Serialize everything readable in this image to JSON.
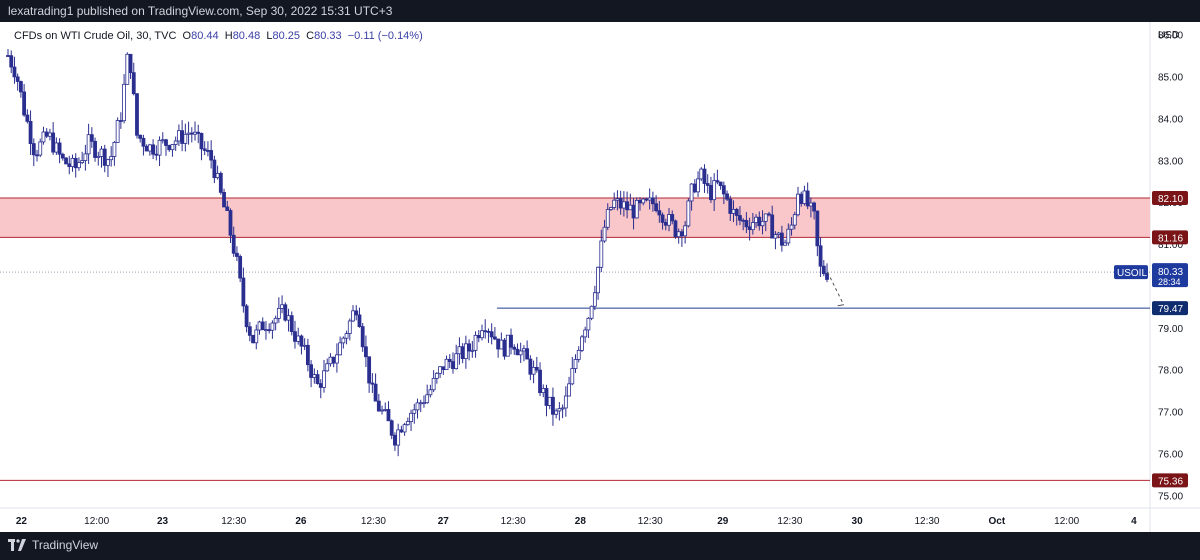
{
  "header": {
    "published_text": "lexatrading1 published on TradingView.com, Sep 30, 2022 15:31 UTC+3"
  },
  "legend": {
    "instrument": "CFDs on WTI Crude Oil, 30, TVC",
    "o_label": "O",
    "o_value": "80.44",
    "h_label": "H",
    "h_value": "80.48",
    "l_label": "L",
    "l_value": "80.25",
    "c_label": "C",
    "c_value": "80.33",
    "change": "−0.11 (−0.14%)"
  },
  "footer": {
    "brand": "TradingView"
  },
  "colors": {
    "candle": "#2a2e8f",
    "zone_fill": "#f9c6c9",
    "zone_line": "#b22833",
    "support_line": "#1f3f8f",
    "label_red": "#7a1417",
    "label_blue": "#0f2d6e",
    "symbol_badge": "#1e3a9e"
  },
  "chart_data": {
    "type": "candlestick",
    "currency_label": "USD",
    "ylim": [
      74.7,
      86.3
    ],
    "y_ticks": [
      "75.00",
      "76.00",
      "77.00",
      "78.00",
      "79.00",
      "81.00",
      "82.00",
      "83.00",
      "84.00",
      "85.00",
      "86.00"
    ],
    "x_ticks": [
      "22",
      "12:00",
      "23",
      "12:30",
      "26",
      "12:30",
      "27",
      "12:30",
      "28",
      "12:30",
      "29",
      "12:30",
      "30",
      "12:30",
      "Oct",
      "12:00",
      "4"
    ],
    "x_tick_bold": [
      "22",
      "23",
      "26",
      "27",
      "28",
      "29",
      "30",
      "Oct",
      "4"
    ],
    "x_tick_positions": [
      0.5,
      3.3,
      5.75,
      8.4,
      10.9,
      13.6,
      16.2,
      18.8,
      21.3,
      23.9,
      26.6,
      29.1,
      31.6,
      34.2,
      36.8,
      39.4,
      41.9
    ],
    "price_path": [
      [
        0,
        85.5
      ],
      [
        0.3,
        85.1
      ],
      [
        0.6,
        84.2
      ],
      [
        1.0,
        83.2
      ],
      [
        1.5,
        83.6
      ],
      [
        2.0,
        83.0
      ],
      [
        2.5,
        82.8
      ],
      [
        3.0,
        83.4
      ],
      [
        3.4,
        83.2
      ],
      [
        3.8,
        83.0
      ],
      [
        4.2,
        84.1
      ],
      [
        4.5,
        85.7
      ],
      [
        4.8,
        83.6
      ],
      [
        5.3,
        83.3
      ],
      [
        5.8,
        83.4
      ],
      [
        6.3,
        83.5
      ],
      [
        6.8,
        83.7
      ],
      [
        7.2,
        83.3
      ],
      [
        7.6,
        83.0
      ],
      [
        7.9,
        82.2
      ],
      [
        8.2,
        81.5
      ],
      [
        8.5,
        80.6
      ],
      [
        8.8,
        79.4
      ],
      [
        9.1,
        78.7
      ],
      [
        9.5,
        79.1
      ],
      [
        9.9,
        79.2
      ],
      [
        10.3,
        79.4
      ],
      [
        10.7,
        78.8
      ],
      [
        11.1,
        78.3
      ],
      [
        11.5,
        77.6
      ],
      [
        11.9,
        78.0
      ],
      [
        12.3,
        78.5
      ],
      [
        12.7,
        79.1
      ],
      [
        13.0,
        79.6
      ],
      [
        13.3,
        78.3
      ],
      [
        13.6,
        77.3
      ],
      [
        14.0,
        76.9
      ],
      [
        14.4,
        76.4
      ],
      [
        14.8,
        76.9
      ],
      [
        15.2,
        77.1
      ],
      [
        15.7,
        77.5
      ],
      [
        16.2,
        78.1
      ],
      [
        16.7,
        78.3
      ],
      [
        17.2,
        78.5
      ],
      [
        17.7,
        79.2
      ],
      [
        18.0,
        78.9
      ],
      [
        18.4,
        78.5
      ],
      [
        18.8,
        78.7
      ],
      [
        19.2,
        78.3
      ],
      [
        19.6,
        77.9
      ],
      [
        20.0,
        77.3
      ],
      [
        20.4,
        76.9
      ],
      [
        20.7,
        77.1
      ],
      [
        21.0,
        77.9
      ],
      [
        21.3,
        78.8
      ],
      [
        21.6,
        79.3
      ],
      [
        21.9,
        80.2
      ],
      [
        22.2,
        81.4
      ],
      [
        22.5,
        82.0
      ],
      [
        22.9,
        81.9
      ],
      [
        23.3,
        81.8
      ],
      [
        23.7,
        81.9
      ],
      [
        24.1,
        82.0
      ],
      [
        24.5,
        81.6
      ],
      [
        24.9,
        81.3
      ],
      [
        25.2,
        81.5
      ],
      [
        25.5,
        82.4
      ],
      [
        25.8,
        82.6
      ],
      [
        26.1,
        82.2
      ],
      [
        26.4,
        82.4
      ],
      [
        26.8,
        82.0
      ],
      [
        27.1,
        81.6
      ],
      [
        27.5,
        81.5
      ],
      [
        27.9,
        81.6
      ],
      [
        28.3,
        81.5
      ],
      [
        28.6,
        81.2
      ],
      [
        28.9,
        81.0
      ],
      [
        29.2,
        81.5
      ],
      [
        29.4,
        82.3
      ],
      [
        29.7,
        82.0
      ],
      [
        30.0,
        81.6
      ],
      [
        30.2,
        80.4
      ],
      [
        30.5,
        80.33
      ]
    ],
    "price_path_x_max": 42.5,
    "zone": {
      "upper": 82.1,
      "lower": 81.16,
      "upper_label": "82.10",
      "lower_label": "81.16"
    },
    "support": {
      "value": 79.47,
      "label": "79.47",
      "start_x": 18.2
    },
    "bottom_line": {
      "value": 75.36,
      "label": "75.36"
    },
    "current": {
      "value": 80.33,
      "label": "80.33",
      "symbol": "USOIL",
      "countdown": "28:34"
    },
    "projection": [
      [
        30.5,
        80.33
      ],
      [
        31.1,
        79.55
      ]
    ]
  }
}
